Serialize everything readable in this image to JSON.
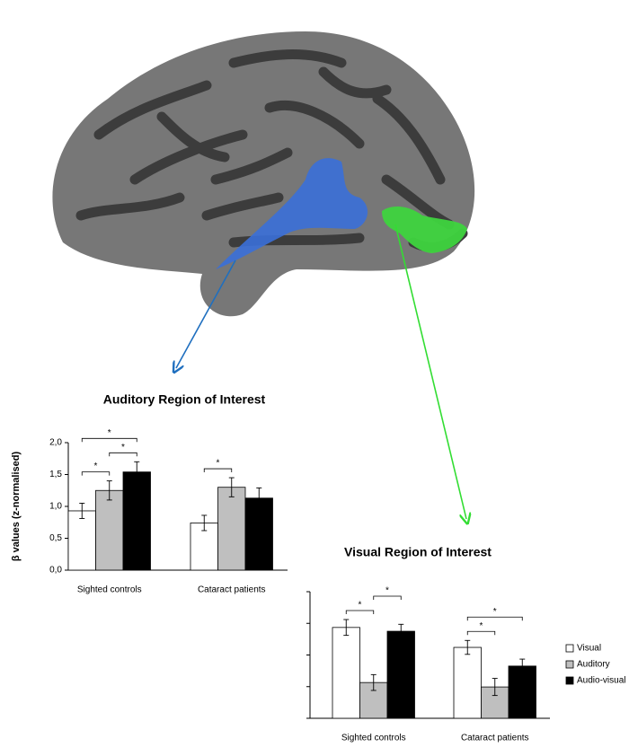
{
  "chart_data": [
    {
      "type": "bar",
      "title": "Auditory Region of Interest",
      "y_label": "β values (z-normalised)",
      "categories": [
        "Sighted controls",
        "Cataract patients"
      ],
      "series": [
        {
          "color": "#ffffff",
          "values": [
            0.93,
            0.74
          ],
          "errors": [
            0.12,
            0.12
          ]
        },
        {
          "color": "#bfbfbf",
          "values": [
            1.25,
            1.3
          ],
          "errors": [
            0.15,
            0.15
          ]
        },
        {
          "color": "#000000",
          "values": [
            1.54,
            1.13
          ],
          "errors": [
            0.16,
            0.16
          ]
        }
      ],
      "ylim": [
        0,
        2
      ],
      "yticks": [
        {
          "value": 0,
          "label": "0,0"
        },
        {
          "value": 0.5,
          "label": "0,5"
        },
        {
          "value": 1,
          "label": "1,0"
        },
        {
          "value": 1.5,
          "label": "1,5"
        },
        {
          "value": 2,
          "label": "2,0"
        }
      ],
      "ytick_labels": true,
      "legend": false,
      "significance": [
        {
          "category": 0,
          "series": [
            0,
            1
          ],
          "label": "*"
        },
        {
          "category": 0,
          "series": [
            1,
            2
          ],
          "label": "*"
        },
        {
          "category": 0,
          "series": [
            0,
            2
          ],
          "label": "*"
        },
        {
          "category": 1,
          "series": [
            0,
            1
          ],
          "label": "*"
        }
      ]
    },
    {
      "type": "bar",
      "title": "Visual Region of Interest",
      "categories": [
        "Sighted controls",
        "Cataract patients"
      ],
      "series": [
        {
          "name": "Visual",
          "color": "#ffffff",
          "values": [
            2.87,
            2.24
          ],
          "errors": [
            0.25,
            0.22
          ]
        },
        {
          "name": "Auditory",
          "color": "#bfbfbf",
          "values": [
            1.13,
            0.99
          ],
          "errors": [
            0.25,
            0.27
          ]
        },
        {
          "name": "Audio-visual",
          "color": "#000000",
          "values": [
            2.75,
            1.65
          ],
          "errors": [
            0.22,
            0.22
          ]
        }
      ],
      "ylim": [
        0,
        4
      ],
      "yticks": [
        0,
        1,
        2,
        3,
        4
      ],
      "ytick_labels": false,
      "legend": "right",
      "significance": [
        {
          "category": 0,
          "series": [
            0,
            1
          ],
          "label": "*"
        },
        {
          "category": 0,
          "series": [
            1,
            2
          ],
          "label": "*"
        },
        {
          "category": 1,
          "series": [
            0,
            1
          ],
          "label": "*"
        },
        {
          "category": 1,
          "series": [
            0,
            2
          ],
          "label": "*"
        }
      ]
    }
  ]
}
